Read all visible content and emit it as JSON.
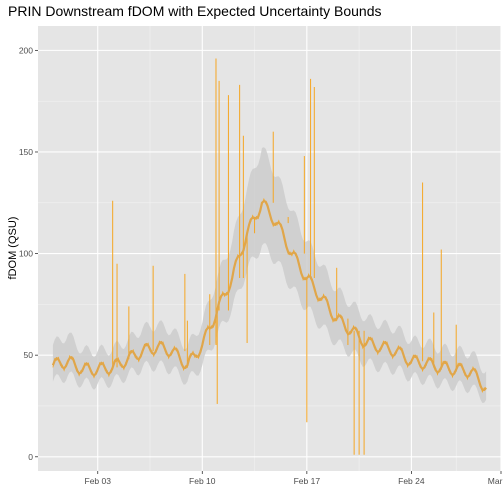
{
  "chart_data": {
    "type": "line",
    "title": "PRIN Downstream fDOM with Expected Uncertainty Bounds",
    "xlabel": "",
    "ylabel": "fDOM (QSU)",
    "x_axis": "date",
    "ylim": [
      -7,
      212
    ],
    "xlim": [
      "2022-01-30",
      "2022-03-02"
    ],
    "x_ticks": [
      {
        "date": "2022-02-03",
        "label": "Feb 03"
      },
      {
        "date": "2022-02-10",
        "label": "Feb 10"
      },
      {
        "date": "2022-02-17",
        "label": "Feb 17"
      },
      {
        "date": "2022-02-24",
        "label": "Feb 24"
      },
      {
        "date": "2022-03-02",
        "label": "Mar 02"
      }
    ],
    "y_ticks": [
      0,
      50,
      100,
      150,
      200
    ],
    "grid": true,
    "background": "#E5E5E5",
    "legend": "none",
    "colors": {
      "line": "#F5A623",
      "smooth": "#E0A64A",
      "band": "#CDCDCD"
    },
    "series": [
      {
        "role": "smoothed fDOM",
        "points": [
          [
            "2022-01-31",
            45
          ],
          [
            "2022-02-01",
            47
          ],
          [
            "2022-02-02",
            43
          ],
          [
            "2022-02-03",
            43
          ],
          [
            "2022-02-04",
            44
          ],
          [
            "2022-02-05",
            48
          ],
          [
            "2022-02-06",
            52
          ],
          [
            "2022-02-07",
            54
          ],
          [
            "2022-02-08",
            52
          ],
          [
            "2022-02-09",
            45
          ],
          [
            "2022-02-10",
            55
          ],
          [
            "2022-02-11",
            72
          ],
          [
            "2022-02-12",
            88
          ],
          [
            "2022-02-13",
            110
          ],
          [
            "2022-02-14",
            125
          ],
          [
            "2022-02-15",
            115
          ],
          [
            "2022-02-16",
            100
          ],
          [
            "2022-02-17",
            88
          ],
          [
            "2022-02-18",
            78
          ],
          [
            "2022-02-19",
            68
          ],
          [
            "2022-02-20",
            62
          ],
          [
            "2022-02-21",
            56
          ],
          [
            "2022-02-22",
            54
          ],
          [
            "2022-02-23",
            52
          ],
          [
            "2022-02-24",
            47
          ],
          [
            "2022-02-25",
            46
          ],
          [
            "2022-02-26",
            44
          ],
          [
            "2022-02-27",
            43
          ],
          [
            "2022-02-28",
            42
          ],
          [
            "2022-03-01",
            34
          ]
        ]
      },
      {
        "role": "uncertainty bounds",
        "points": [
          [
            "2022-01-31",
            37,
            55
          ],
          [
            "2022-02-01",
            40,
            60
          ],
          [
            "2022-02-02",
            36,
            52
          ],
          [
            "2022-02-03",
            36,
            52
          ],
          [
            "2022-02-04",
            37,
            53
          ],
          [
            "2022-02-05",
            40,
            57
          ],
          [
            "2022-02-06",
            44,
            63
          ],
          [
            "2022-02-07",
            45,
            65
          ],
          [
            "2022-02-08",
            43,
            62
          ],
          [
            "2022-02-09",
            37,
            54
          ],
          [
            "2022-02-10",
            45,
            66
          ],
          [
            "2022-02-11",
            60,
            88
          ],
          [
            "2022-02-12",
            73,
            106
          ],
          [
            "2022-02-13",
            92,
            132
          ],
          [
            "2022-02-14",
            104,
            152
          ],
          [
            "2022-02-15",
            96,
            138
          ],
          [
            "2022-02-16",
            83,
            121
          ],
          [
            "2022-02-17",
            73,
            106
          ],
          [
            "2022-02-18",
            64,
            94
          ],
          [
            "2022-02-19",
            56,
            82
          ],
          [
            "2022-02-20",
            51,
            75
          ],
          [
            "2022-02-21",
            46,
            68
          ],
          [
            "2022-02-22",
            44,
            65
          ],
          [
            "2022-02-23",
            43,
            63
          ],
          [
            "2022-02-24",
            39,
            57
          ],
          [
            "2022-02-25",
            38,
            56
          ],
          [
            "2022-02-26",
            36,
            53
          ],
          [
            "2022-02-27",
            35,
            52
          ],
          [
            "2022-02-28",
            34,
            51
          ],
          [
            "2022-03-01",
            28,
            42
          ]
        ]
      },
      {
        "role": "fDOM spikes",
        "points": [
          [
            "2022-02-04T00:00",
            126
          ],
          [
            "2022-02-04T07:00",
            95
          ],
          [
            "2022-02-05T02:00",
            74
          ],
          [
            "2022-02-06T17:00",
            94
          ],
          [
            "2022-02-08T20:00",
            90
          ],
          [
            "2022-02-09T00:00",
            67
          ],
          [
            "2022-02-10T12:00",
            80
          ],
          [
            "2022-02-10T22:00",
            196
          ],
          [
            "2022-02-11T00:00",
            26
          ],
          [
            "2022-02-11T03:00",
            185
          ],
          [
            "2022-02-11T18:00",
            178
          ],
          [
            "2022-02-12T12:00",
            183
          ],
          [
            "2022-02-12T18:00",
            158
          ],
          [
            "2022-02-13T00:00",
            56
          ],
          [
            "2022-02-13T12:00",
            118
          ],
          [
            "2022-02-14T18:00",
            160
          ],
          [
            "2022-02-15T18:00",
            118
          ],
          [
            "2022-02-16T20:00",
            148
          ],
          [
            "2022-02-17T00:00",
            17
          ],
          [
            "2022-02-17T06:00",
            186
          ],
          [
            "2022-02-17T12:00",
            182
          ],
          [
            "2022-02-19T00:00",
            93
          ],
          [
            "2022-02-19T18:00",
            55
          ],
          [
            "2022-02-20T04:00",
            1
          ],
          [
            "2022-02-20T12:00",
            1
          ],
          [
            "2022-02-20T20:00",
            1
          ],
          [
            "2022-02-24T18:00",
            135
          ],
          [
            "2022-02-25T12:00",
            71
          ],
          [
            "2022-02-26T00:00",
            102
          ],
          [
            "2022-02-27T00:00",
            65
          ]
        ]
      }
    ]
  }
}
